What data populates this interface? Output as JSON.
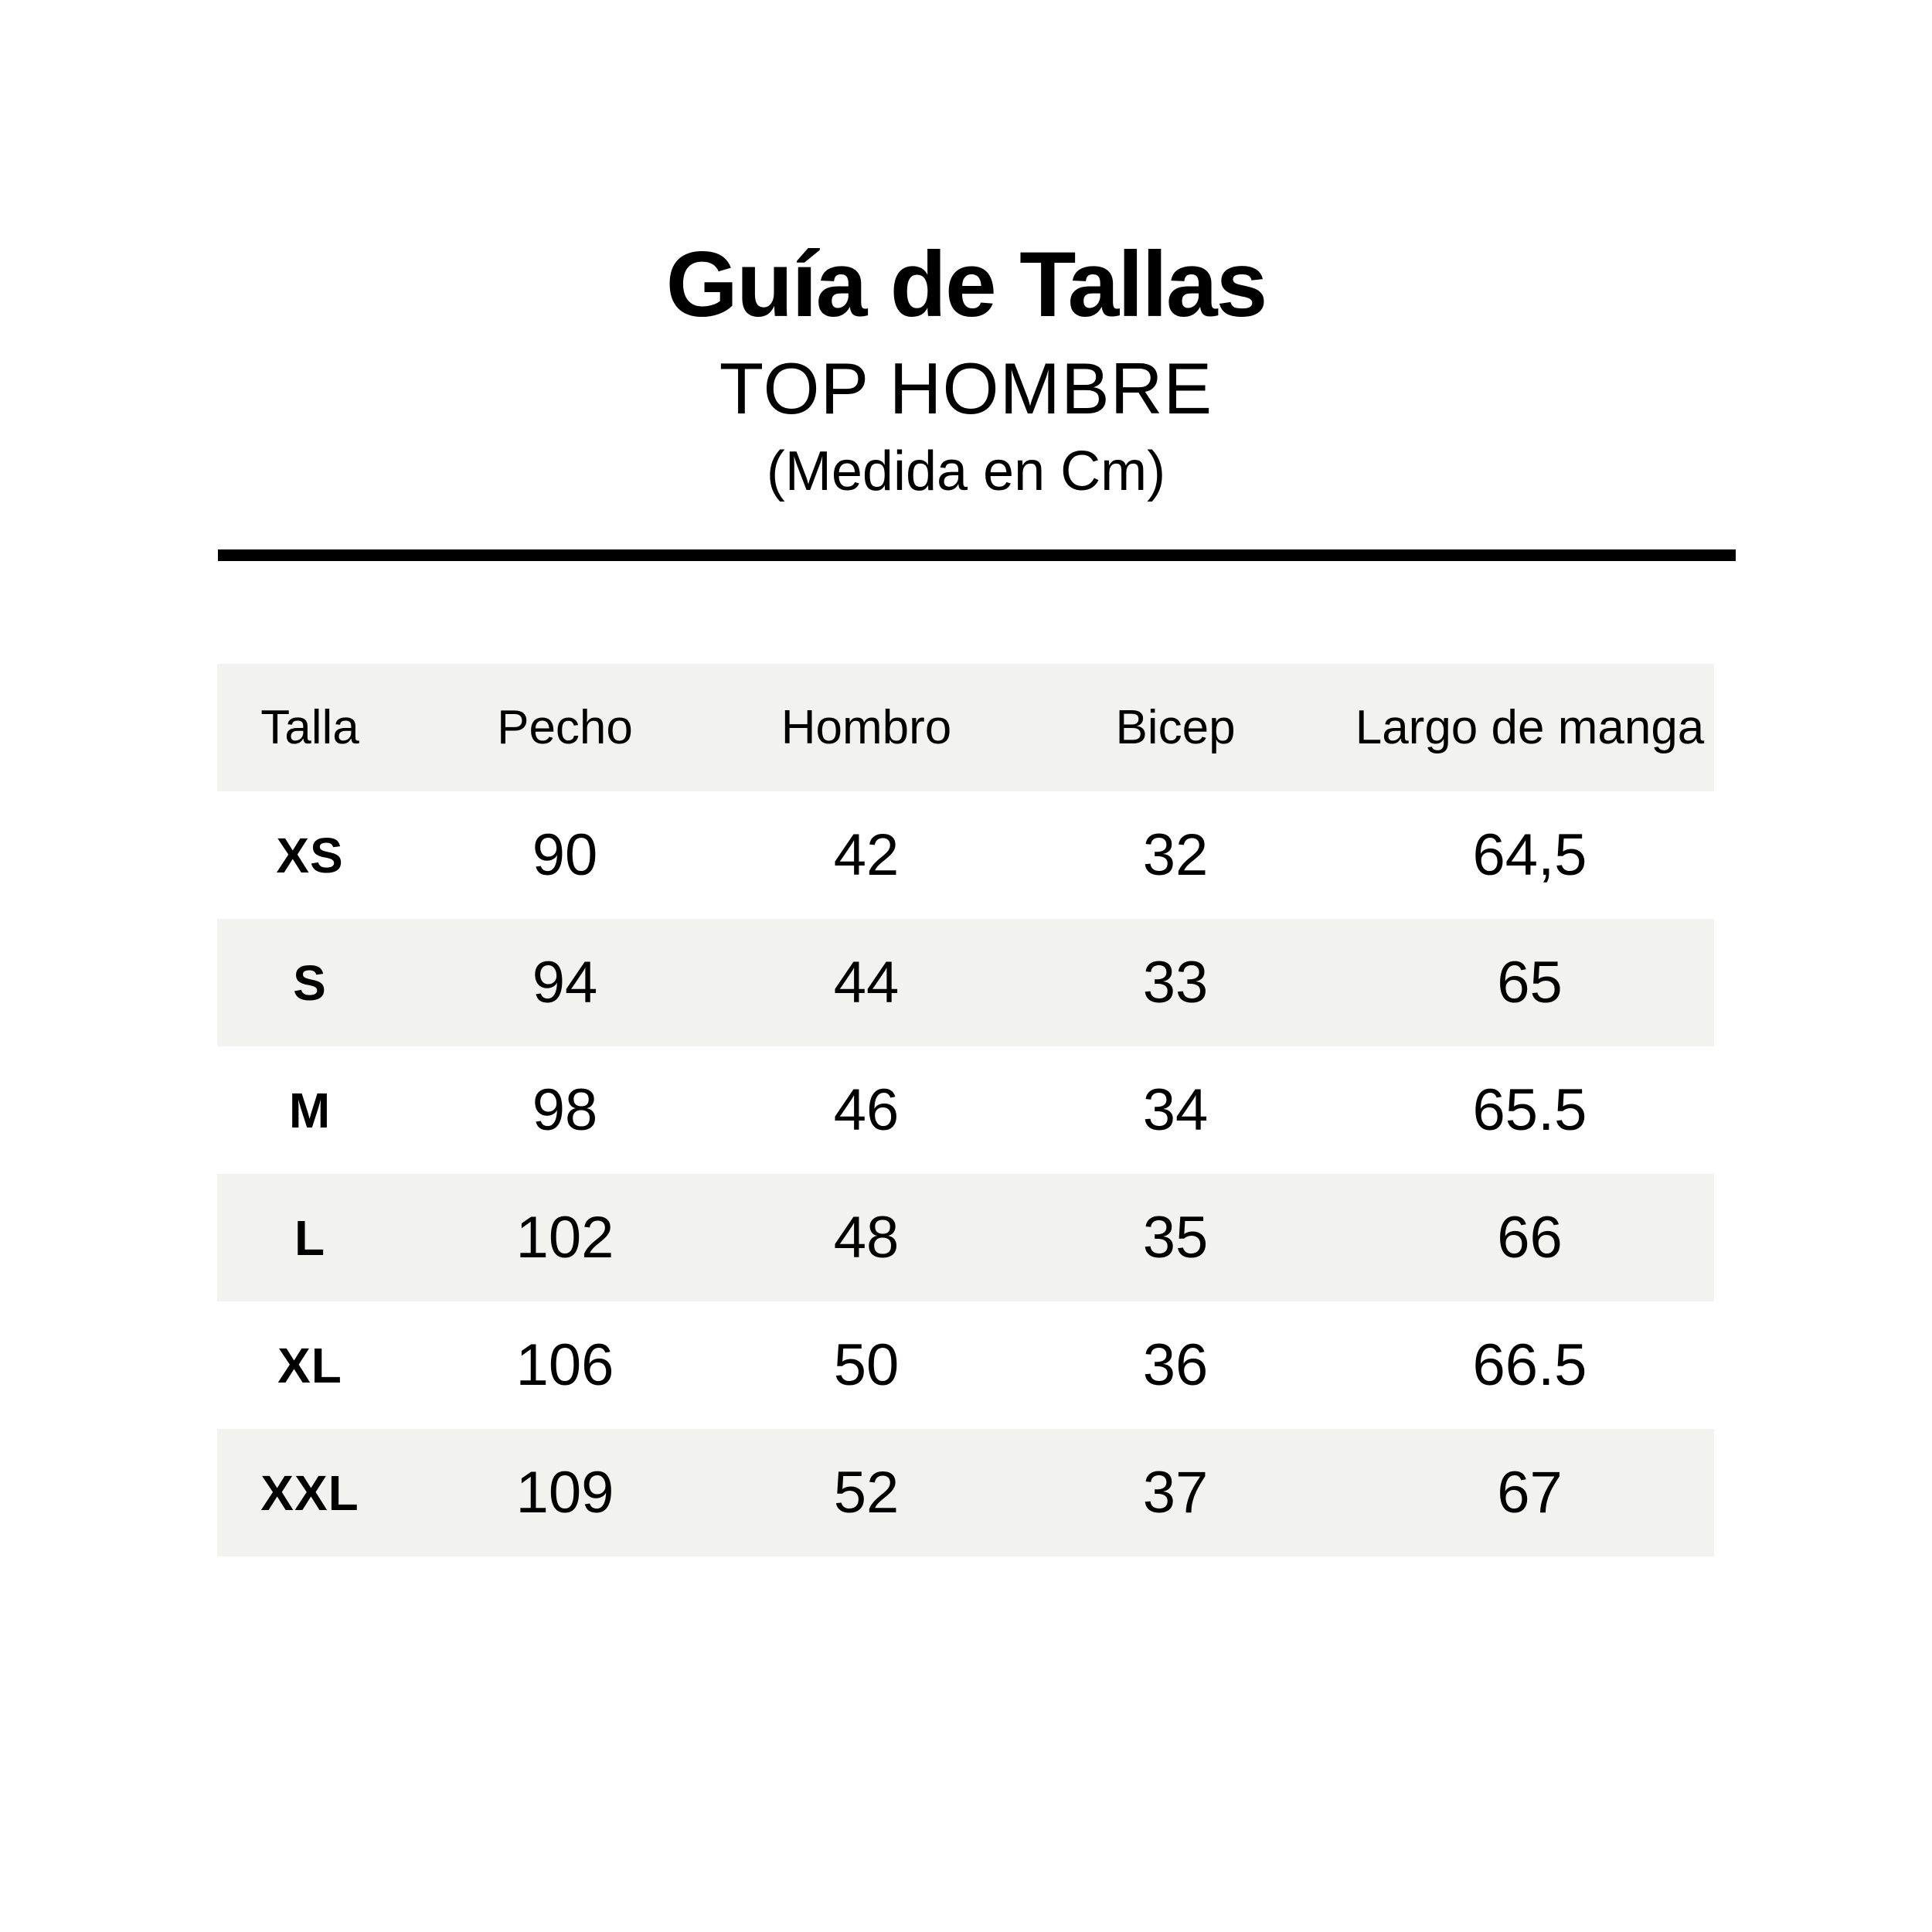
{
  "title": {
    "main": "Guía de Tallas",
    "subtitle": "TOP HOMBRE",
    "units_note": "(Medida en Cm)"
  },
  "chart_data": {
    "type": "table",
    "title": "Guía de Tallas",
    "subtitle": "TOP HOMBRE",
    "units": "cm",
    "columns": [
      "Talla",
      "Pecho",
      "Hombro",
      "Bicep",
      "Largo de manga"
    ],
    "rows": [
      {
        "size": "XS",
        "values": [
          "90",
          "42",
          "32",
          "64,5"
        ]
      },
      {
        "size": "S",
        "values": [
          "94",
          "44",
          "33",
          "65"
        ]
      },
      {
        "size": "M",
        "values": [
          "98",
          "46",
          "34",
          "65.5"
        ]
      },
      {
        "size": "L",
        "values": [
          "102",
          "48",
          "35",
          "66"
        ]
      },
      {
        "size": "XL",
        "values": [
          "106",
          "50",
          "36",
          "66.5"
        ]
      },
      {
        "size": "XXL",
        "values": [
          "109",
          "52",
          "37",
          "67"
        ]
      }
    ]
  },
  "colors": {
    "text": "#000000",
    "divider": "#000000",
    "row_alt_background": "#f2f2f0",
    "page_background": "#ffffff"
  }
}
